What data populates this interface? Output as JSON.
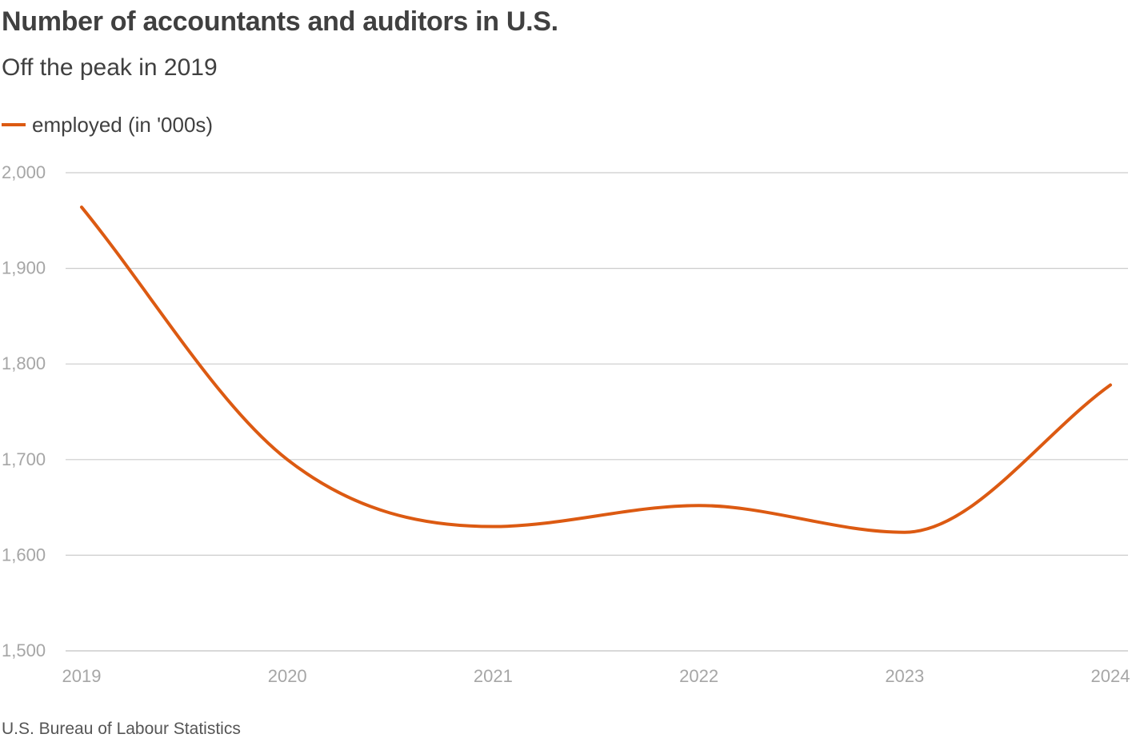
{
  "chart_data": {
    "type": "line",
    "title": "Number of accountants and auditors in U.S.",
    "subtitle": "Off the peak in 2019",
    "x": [
      2019,
      2020,
      2021,
      2022,
      2023,
      2024
    ],
    "categories": [
      "2019",
      "2020",
      "2021",
      "2022",
      "2023",
      "2024"
    ],
    "series": [
      {
        "name": "employed (in '000s)",
        "values": [
          1964,
          1700,
          1630,
          1652,
          1624,
          1778
        ],
        "color": "#dc5a12"
      }
    ],
    "ylim": [
      1500,
      2000
    ],
    "yticks": [
      1500,
      1600,
      1700,
      1800,
      1900,
      2000
    ],
    "ytick_labels": [
      "1,500",
      "1,600",
      "1,700",
      "1,800",
      "1,900",
      "2,000"
    ],
    "xlabel": "",
    "ylabel": "",
    "grid": true,
    "legend_position": "top-left",
    "source": "U.S. Bureau of Labour Statistics",
    "colors": {
      "line": "#dc5a12",
      "grid": "#cccccc",
      "tick_text": "#a6a6a6",
      "title_text": "#404040"
    }
  }
}
